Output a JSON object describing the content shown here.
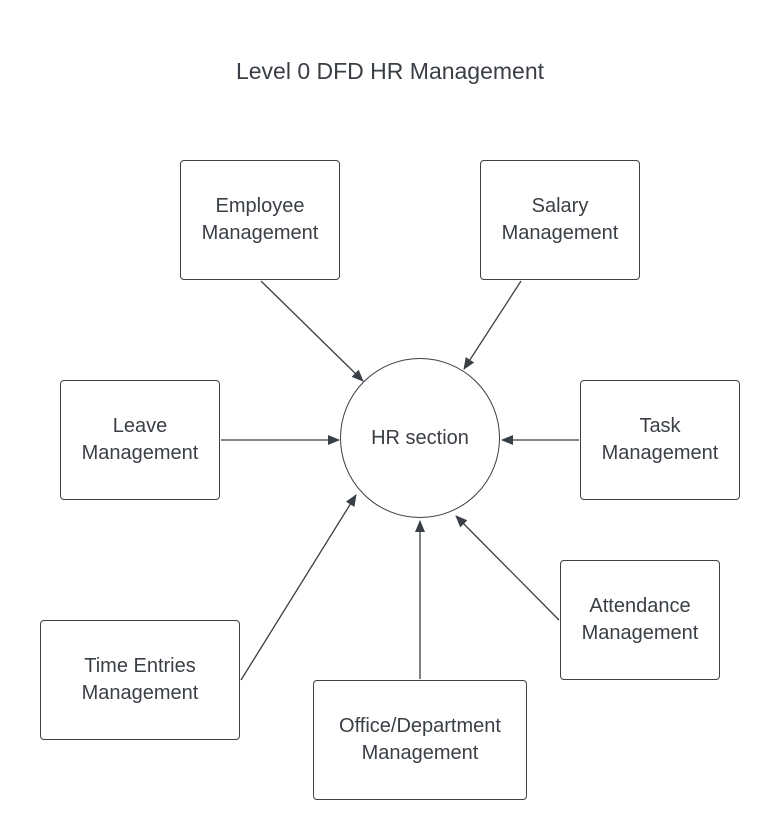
{
  "title": "Level 0 DFD HR Management",
  "hub": {
    "label": "HR section"
  },
  "processes": {
    "employee": "Employee\nManagement",
    "salary": "Salary\nManagement",
    "leave": "Leave\nManagement",
    "task": "Task\nManagement",
    "attendance": "Attendance\nManagement",
    "time_entries": "Time Entries\nManagement",
    "office": "Office/Department\nManagement"
  },
  "colors": {
    "stroke": "#3a3f45",
    "background": "#ffffff"
  }
}
